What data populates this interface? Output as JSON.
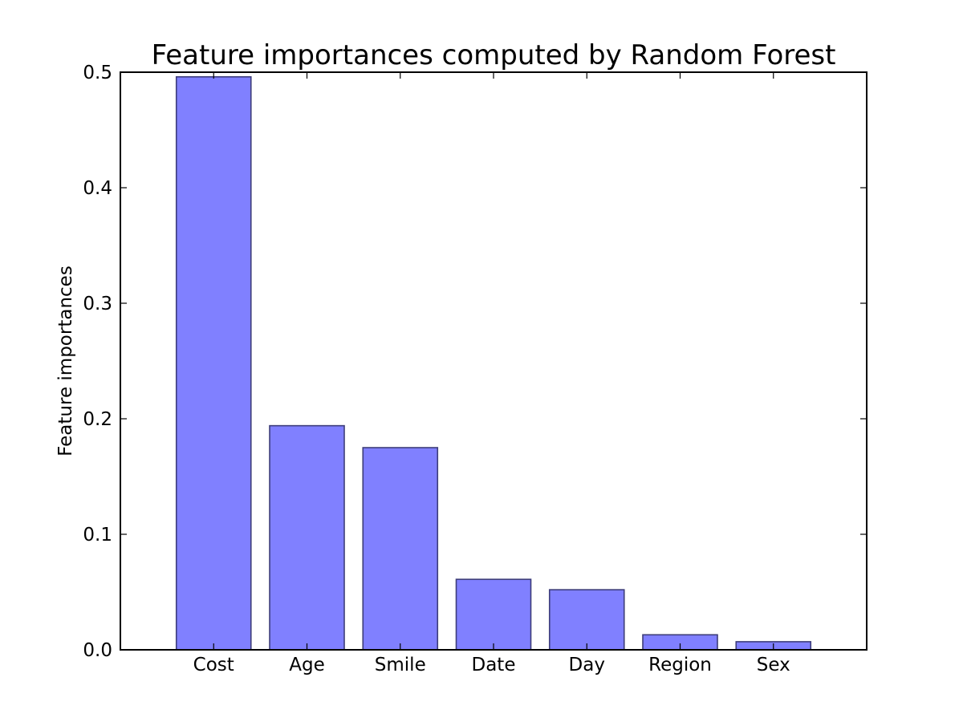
{
  "chart_data": {
    "type": "bar",
    "title": "Feature importances computed by Random Forest",
    "xlabel": "",
    "ylabel": "Feature importances",
    "categories": [
      "Cost",
      "Age",
      "Smile",
      "Date",
      "Day",
      "Region",
      "Sex"
    ],
    "values": [
      0.496,
      0.194,
      0.175,
      0.061,
      0.052,
      0.013,
      0.007
    ],
    "ylim": [
      0.0,
      0.5
    ],
    "yticks": [
      "0.0",
      "0.1",
      "0.2",
      "0.3",
      "0.4",
      "0.5"
    ],
    "grid": false,
    "legend": "none",
    "bar_color": "#8080ff",
    "bar_edge_color": "#3d3d7a"
  }
}
